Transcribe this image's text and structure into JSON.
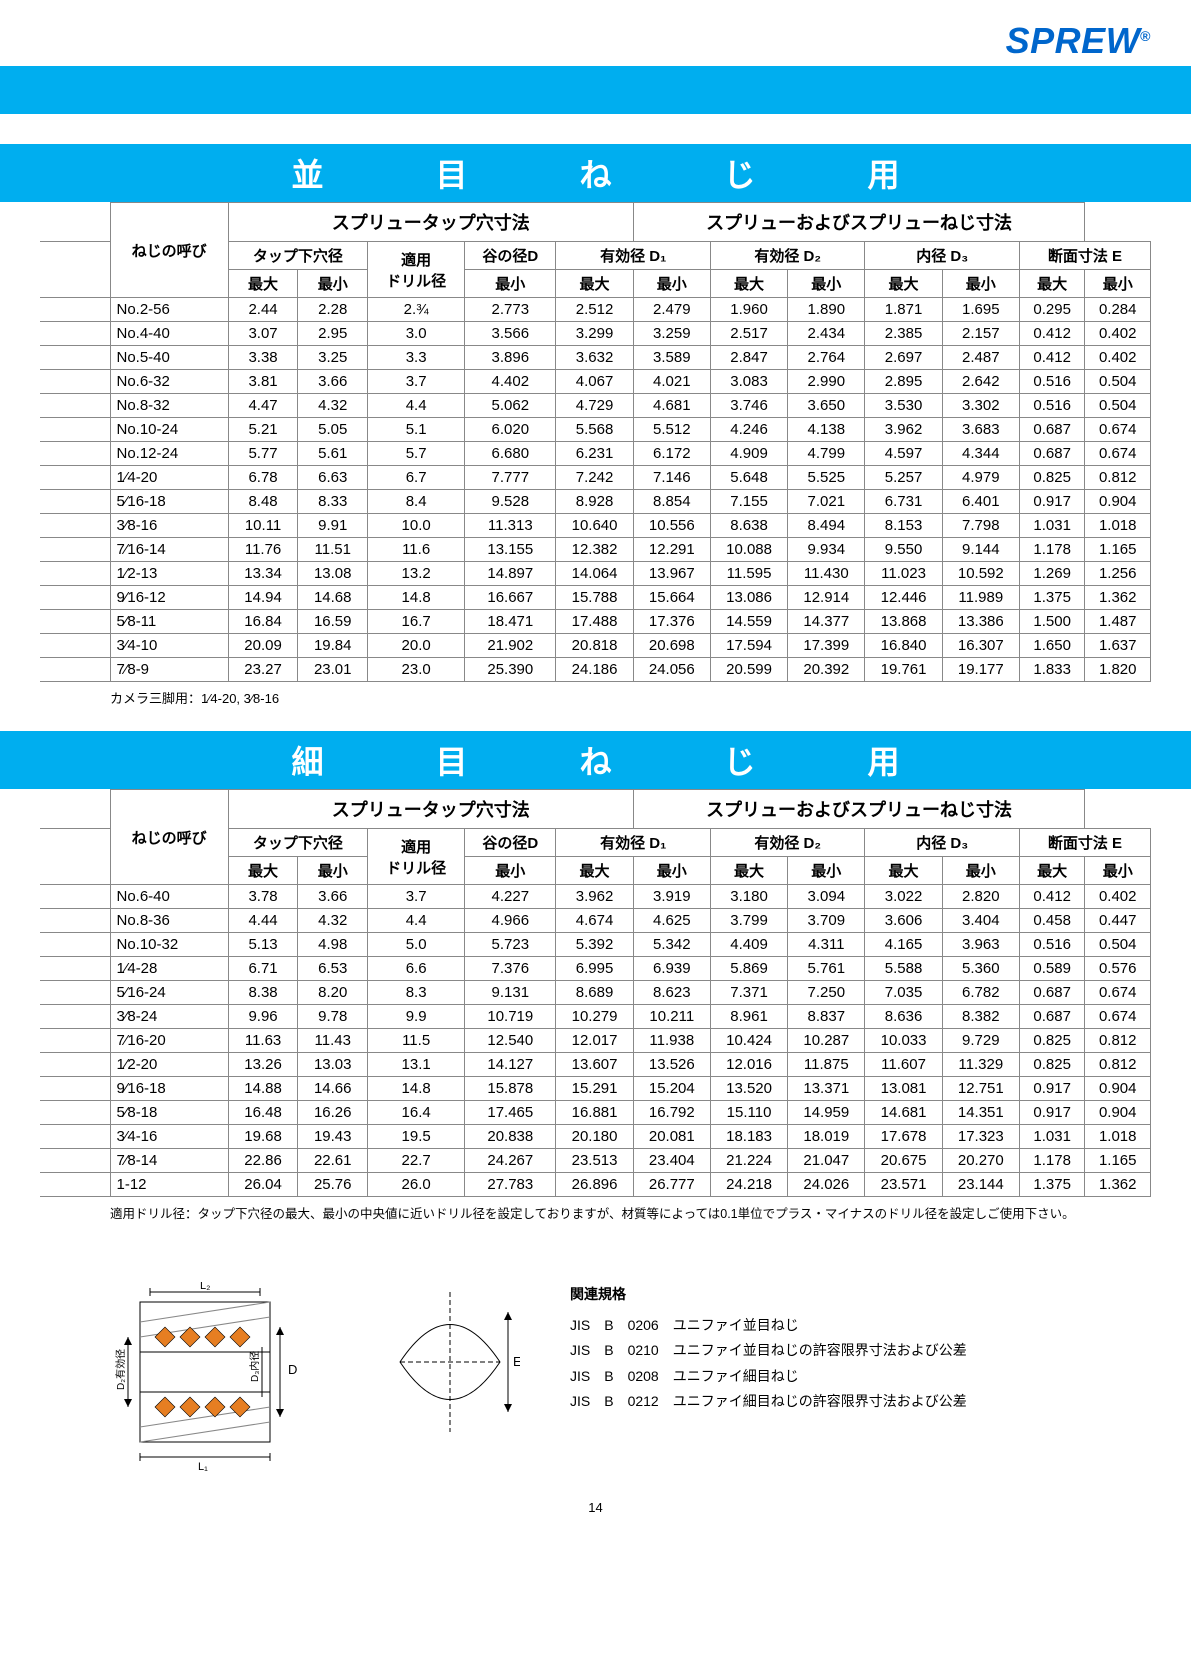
{
  "logo": "SPREW",
  "logo_reg": "®",
  "bands": {
    "top_color": "#00aeef"
  },
  "section1": {
    "title": "並　目　ね　じ　用",
    "group_left": "スプリュータップ穴寸法",
    "group_right": "スプリューおよびスプリューねじ寸法",
    "col_name": "ねじの呼び",
    "col_tap": "タップ下穴径",
    "col_drill": "適用\nドリル径",
    "col_valleyD": "谷の径D",
    "col_d1": "有効径 D₁",
    "col_d2": "有効径 D₂",
    "col_d3": "内径 D₃",
    "col_e": "断面寸法 E",
    "col_max": "最大",
    "col_min": "最小",
    "rows": [
      {
        "n": "No.2-56",
        "v": [
          "2.44",
          "2.28",
          "2.¾",
          "2.773",
          "2.512",
          "2.479",
          "1.960",
          "1.890",
          "1.871",
          "1.695",
          "0.295",
          "0.284"
        ]
      },
      {
        "n": "No.4-40",
        "v": [
          "3.07",
          "2.95",
          "3.0",
          "3.566",
          "3.299",
          "3.259",
          "2.517",
          "2.434",
          "2.385",
          "2.157",
          "0.412",
          "0.402"
        ]
      },
      {
        "n": "No.5-40",
        "v": [
          "3.38",
          "3.25",
          "3.3",
          "3.896",
          "3.632",
          "3.589",
          "2.847",
          "2.764",
          "2.697",
          "2.487",
          "0.412",
          "0.402"
        ]
      },
      {
        "n": "No.6-32",
        "v": [
          "3.81",
          "3.66",
          "3.7",
          "4.402",
          "4.067",
          "4.021",
          "3.083",
          "2.990",
          "2.895",
          "2.642",
          "0.516",
          "0.504"
        ]
      },
      {
        "n": "No.8-32",
        "v": [
          "4.47",
          "4.32",
          "4.4",
          "5.062",
          "4.729",
          "4.681",
          "3.746",
          "3.650",
          "3.530",
          "3.302",
          "0.516",
          "0.504"
        ]
      },
      {
        "n": "No.10-24",
        "v": [
          "5.21",
          "5.05",
          "5.1",
          "6.020",
          "5.568",
          "5.512",
          "4.246",
          "4.138",
          "3.962",
          "3.683",
          "0.687",
          "0.674"
        ]
      },
      {
        "n": "No.12-24",
        "v": [
          "5.77",
          "5.61",
          "5.7",
          "6.680",
          "6.231",
          "6.172",
          "4.909",
          "4.799",
          "4.597",
          "4.344",
          "0.687",
          "0.674"
        ]
      },
      {
        "n": "1⁄4-20",
        "v": [
          "6.78",
          "6.63",
          "6.7",
          "7.777",
          "7.242",
          "7.146",
          "5.648",
          "5.525",
          "5.257",
          "4.979",
          "0.825",
          "0.812"
        ]
      },
      {
        "n": "5⁄16-18",
        "v": [
          "8.48",
          "8.33",
          "8.4",
          "9.528",
          "8.928",
          "8.854",
          "7.155",
          "7.021",
          "6.731",
          "6.401",
          "0.917",
          "0.904"
        ]
      },
      {
        "n": "3⁄8-16",
        "v": [
          "10.11",
          "9.91",
          "10.0",
          "11.313",
          "10.640",
          "10.556",
          "8.638",
          "8.494",
          "8.153",
          "7.798",
          "1.031",
          "1.018"
        ]
      },
      {
        "n": "7⁄16-14",
        "v": [
          "11.76",
          "11.51",
          "11.6",
          "13.155",
          "12.382",
          "12.291",
          "10.088",
          "9.934",
          "9.550",
          "9.144",
          "1.178",
          "1.165"
        ]
      },
      {
        "n": "1⁄2-13",
        "v": [
          "13.34",
          "13.08",
          "13.2",
          "14.897",
          "14.064",
          "13.967",
          "11.595",
          "11.430",
          "11.023",
          "10.592",
          "1.269",
          "1.256"
        ]
      },
      {
        "n": "9⁄16-12",
        "v": [
          "14.94",
          "14.68",
          "14.8",
          "16.667",
          "15.788",
          "15.664",
          "13.086",
          "12.914",
          "12.446",
          "11.989",
          "1.375",
          "1.362"
        ]
      },
      {
        "n": "5⁄8-11",
        "v": [
          "16.84",
          "16.59",
          "16.7",
          "18.471",
          "17.488",
          "17.376",
          "14.559",
          "14.377",
          "13.868",
          "13.386",
          "1.500",
          "1.487"
        ]
      },
      {
        "n": "3⁄4-10",
        "v": [
          "20.09",
          "19.84",
          "20.0",
          "21.902",
          "20.818",
          "20.698",
          "17.594",
          "17.399",
          "16.840",
          "16.307",
          "1.650",
          "1.637"
        ]
      },
      {
        "n": "7⁄8-9",
        "v": [
          "23.27",
          "23.01",
          "23.0",
          "25.390",
          "24.186",
          "24.056",
          "20.599",
          "20.392",
          "19.761",
          "19.177",
          "1.833",
          "1.820"
        ]
      }
    ],
    "footnote": "カメラ三脚用：1⁄4-20, 3⁄8-16"
  },
  "section2": {
    "title": "細　目　ね　じ　用",
    "rows": [
      {
        "n": "No.6-40",
        "v": [
          "3.78",
          "3.66",
          "3.7",
          "4.227",
          "3.962",
          "3.919",
          "3.180",
          "3.094",
          "3.022",
          "2.820",
          "0.412",
          "0.402"
        ]
      },
      {
        "n": "No.8-36",
        "v": [
          "4.44",
          "4.32",
          "4.4",
          "4.966",
          "4.674",
          "4.625",
          "3.799",
          "3.709",
          "3.606",
          "3.404",
          "0.458",
          "0.447"
        ]
      },
      {
        "n": "No.10-32",
        "v": [
          "5.13",
          "4.98",
          "5.0",
          "5.723",
          "5.392",
          "5.342",
          "4.409",
          "4.311",
          "4.165",
          "3.963",
          "0.516",
          "0.504"
        ]
      },
      {
        "n": "1⁄4-28",
        "v": [
          "6.71",
          "6.53",
          "6.6",
          "7.376",
          "6.995",
          "6.939",
          "5.869",
          "5.761",
          "5.588",
          "5.360",
          "0.589",
          "0.576"
        ]
      },
      {
        "n": "5⁄16-24",
        "v": [
          "8.38",
          "8.20",
          "8.3",
          "9.131",
          "8.689",
          "8.623",
          "7.371",
          "7.250",
          "7.035",
          "6.782",
          "0.687",
          "0.674"
        ]
      },
      {
        "n": "3⁄8-24",
        "v": [
          "9.96",
          "9.78",
          "9.9",
          "10.719",
          "10.279",
          "10.211",
          "8.961",
          "8.837",
          "8.636",
          "8.382",
          "0.687",
          "0.674"
        ]
      },
      {
        "n": "7⁄16-20",
        "v": [
          "11.63",
          "11.43",
          "11.5",
          "12.540",
          "12.017",
          "11.938",
          "10.424",
          "10.287",
          "10.033",
          "9.729",
          "0.825",
          "0.812"
        ]
      },
      {
        "n": "1⁄2-20",
        "v": [
          "13.26",
          "13.03",
          "13.1",
          "14.127",
          "13.607",
          "13.526",
          "12.016",
          "11.875",
          "11.607",
          "11.329",
          "0.825",
          "0.812"
        ]
      },
      {
        "n": "9⁄16-18",
        "v": [
          "14.88",
          "14.66",
          "14.8",
          "15.878",
          "15.291",
          "15.204",
          "13.520",
          "13.371",
          "13.081",
          "12.751",
          "0.917",
          "0.904"
        ]
      },
      {
        "n": "5⁄8-18",
        "v": [
          "16.48",
          "16.26",
          "16.4",
          "17.465",
          "16.881",
          "16.792",
          "15.110",
          "14.959",
          "14.681",
          "14.351",
          "0.917",
          "0.904"
        ]
      },
      {
        "n": "3⁄4-16",
        "v": [
          "19.68",
          "19.43",
          "19.5",
          "20.838",
          "20.180",
          "20.081",
          "18.183",
          "18.019",
          "17.678",
          "17.323",
          "1.031",
          "1.018"
        ]
      },
      {
        "n": "7⁄8-14",
        "v": [
          "22.86",
          "22.61",
          "22.7",
          "24.267",
          "23.513",
          "23.404",
          "21.224",
          "21.047",
          "20.675",
          "20.270",
          "1.178",
          "1.165"
        ]
      },
      {
        "n": "1-12",
        "v": [
          "26.04",
          "25.76",
          "26.0",
          "27.783",
          "26.896",
          "26.777",
          "24.218",
          "24.026",
          "23.571",
          "23.144",
          "1.375",
          "1.362"
        ]
      }
    ]
  },
  "drill_note": "適用ドリル径：タップ下穴径の最大、最小の中央値に近いドリル径を設定しておりますが、材質等によっては0.1単位でプラス・マイナスのドリル径を設定しご使用下さい。",
  "standards": {
    "title": "関連規格",
    "items": [
      "JIS　B　0206　ユニファイ並目ねじ",
      "JIS　B　0210　ユニファイ並目ねじの許容限界寸法および公差",
      "JIS　B　0208　ユニファイ細目ねじ",
      "JIS　B　0212　ユニファイ細目ねじの許容限界寸法および公差"
    ]
  },
  "diagram_labels": {
    "L2": "L₂",
    "L1": "L₁",
    "D": "D",
    "D2side": "D₂有効径",
    "D3side": "D₃内径",
    "E": "E"
  },
  "page": "14"
}
